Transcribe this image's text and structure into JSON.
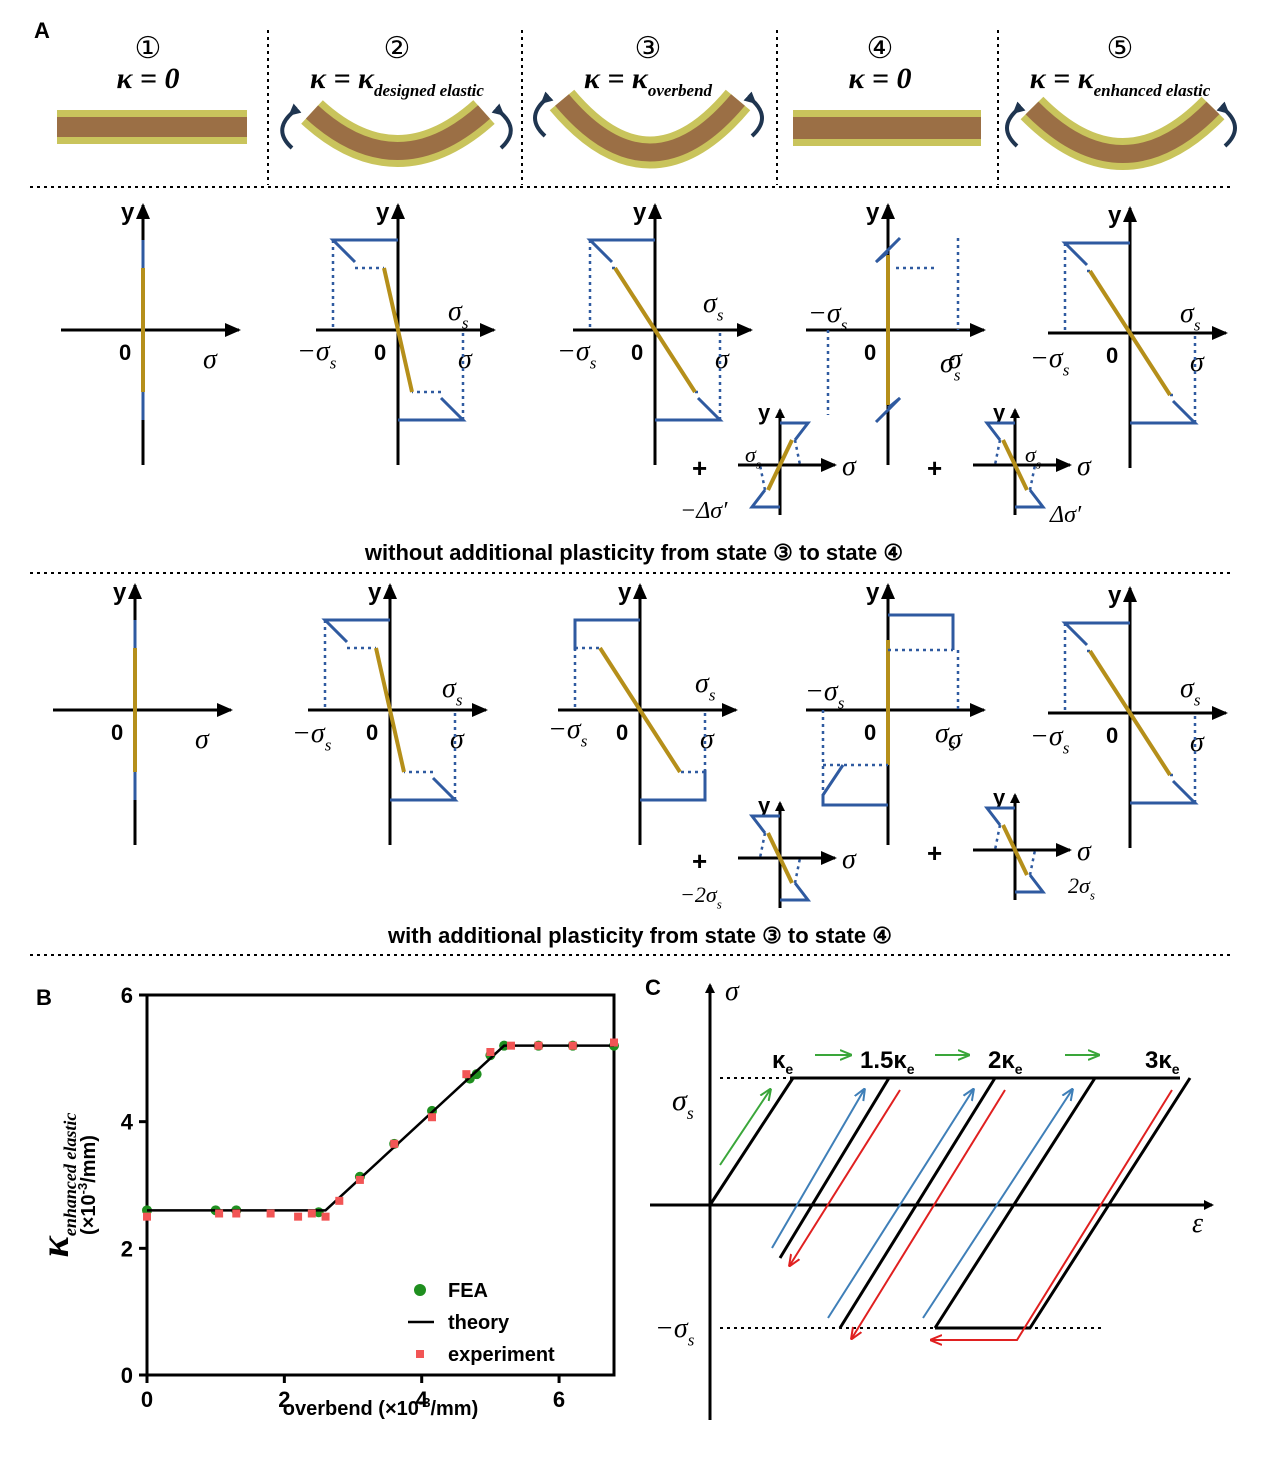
{
  "figure": {
    "panel_labels": [
      "A",
      "B",
      "C"
    ],
    "panel_a": {
      "states": [
        {
          "number": "①",
          "kappa": "κ = 0"
        },
        {
          "number": "②",
          "kappa": "κ = κ",
          "sub": "designed elastic"
        },
        {
          "number": "③",
          "kappa": "κ = κ",
          "sub": "overbend"
        },
        {
          "number": "④",
          "kappa": "κ = 0"
        },
        {
          "number": "⑤",
          "kappa": "κ = κ",
          "sub": "enhanced  elastic"
        }
      ],
      "labels": {
        "y": "y",
        "sigma": "σ",
        "zero": "0",
        "plus": "+",
        "sigma_s": {
          "main": "σ",
          "sub": "s"
        },
        "neg_sigma_s": {
          "main": "−σ",
          "sub": "s"
        },
        "neg_delta": "−Δσ′",
        "delta": "Δσ′",
        "neg_two": {
          "main": "−2σ",
          "sub": "s"
        },
        "two": {
          "main": "2σ",
          "sub": "s"
        }
      },
      "captions": [
        "without additional plasticity from state ③ to state ④",
        "with additional plasticity from state ③ to state ④"
      ]
    },
    "panel_c": {
      "sigma": "σ",
      "epsilon": "ε",
      "sigma_s": {
        "main": "σ",
        "sub": "s"
      },
      "neg_sigma_s": {
        "main": "−σ",
        "sub": "s"
      },
      "steps": [
        {
          "main": "κ",
          "sub": "e"
        },
        {
          "main": "1.5κ",
          "sub": "e"
        },
        {
          "main": "2κ",
          "sub": "e"
        },
        {
          "main": "3κ",
          "sub": "e"
        }
      ]
    }
  },
  "chart_data": {
    "type": "scatter",
    "x_label": {
      "main": "overbend (×10",
      "sup": "-3",
      "end": "/mm)"
    },
    "y_label": {
      "main": "κ",
      "sub": "enhanced elastic",
      "unit_main": "(×10",
      "unit_sup": "-3",
      "unit_end": "/mm)"
    },
    "xlim": [
      0,
      6.8
    ],
    "ylim": [
      0,
      6
    ],
    "xticks": [
      0,
      2,
      4,
      6
    ],
    "yticks": [
      0,
      2,
      4,
      6
    ],
    "legend": "lower right",
    "series": [
      {
        "name": "FEA",
        "color": "#1f8f1f",
        "marker": "circle",
        "x": [
          0,
          1.0,
          1.3,
          2.5,
          3.1,
          3.6,
          4.15,
          4.7,
          4.8,
          5.0,
          5.2,
          5.7,
          6.2,
          6.8
        ],
        "values": [
          2.6,
          2.6,
          2.6,
          2.57,
          3.13,
          3.65,
          4.17,
          4.68,
          4.75,
          5.05,
          5.2,
          5.2,
          5.2,
          5.2
        ]
      },
      {
        "name": "theory",
        "color": "#000000",
        "marker": "line",
        "x": [
          0,
          2.6,
          5.2,
          6.8
        ],
        "values": [
          2.6,
          2.6,
          5.2,
          5.2
        ]
      },
      {
        "name": "experiment",
        "color": "#f25555",
        "marker": "square",
        "x": [
          0,
          1.05,
          1.3,
          1.8,
          2.2,
          2.4,
          2.6,
          2.8,
          3.1,
          3.6,
          4.15,
          4.65,
          5.0,
          5.3,
          5.7,
          6.2,
          6.8
        ],
        "values": [
          2.5,
          2.55,
          2.55,
          2.55,
          2.5,
          2.55,
          2.5,
          2.75,
          3.08,
          3.65,
          4.07,
          4.75,
          5.1,
          5.2,
          5.2,
          5.2,
          5.25
        ]
      }
    ]
  }
}
